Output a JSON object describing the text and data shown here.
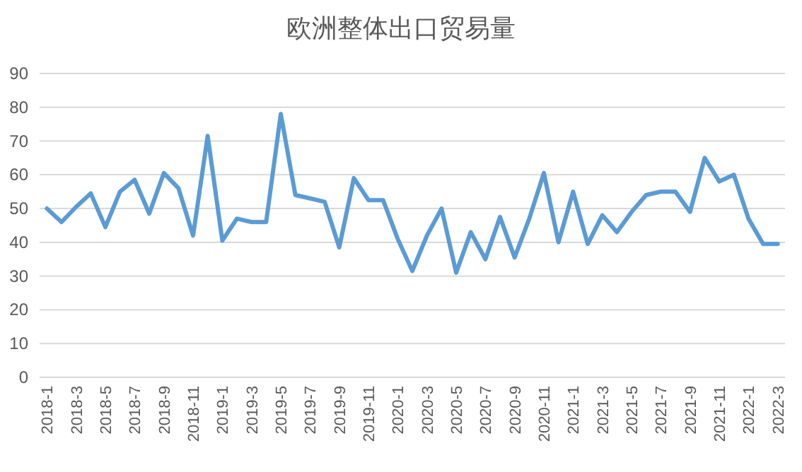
{
  "chart_data": {
    "type": "line",
    "title": "欧洲整体出口贸易量",
    "categories": [
      "2018-1",
      null,
      "2018-3",
      null,
      "2018-5",
      null,
      "2018-7",
      null,
      "2018-9",
      null,
      "2018-11",
      null,
      "2019-1",
      null,
      "2019-3",
      null,
      "2019-5",
      null,
      "2019-7",
      null,
      "2019-9",
      null,
      "2019-11",
      null,
      "2020-1",
      null,
      "2020-3",
      null,
      "2020-5",
      null,
      "2020-7",
      null,
      "2020-9",
      null,
      "2020-11",
      null,
      "2021-1",
      null,
      "2021-3",
      null,
      "2021-5",
      null,
      "2021-7",
      null,
      "2021-9",
      null,
      "2021-11",
      null,
      "2022-1",
      null,
      "2022-3"
    ],
    "series": [
      {
        "color": "#5b9bd5",
        "values": [
          50,
          46,
          50.5,
          54.5,
          44.5,
          55,
          58.5,
          48.5,
          60.5,
          56,
          42,
          71.5,
          40.5,
          47,
          46,
          46,
          78,
          54,
          53,
          52,
          38.5,
          59,
          52.5,
          52.5,
          41,
          31.5,
          42,
          50,
          31,
          43,
          35,
          47.5,
          35.5,
          47,
          60.5,
          40,
          55,
          39.5,
          48,
          43,
          49,
          54,
          55,
          55,
          49,
          65,
          58,
          60,
          47,
          39.5,
          39.5
        ]
      }
    ],
    "ylim": [
      0,
      90
    ],
    "yticks": [
      0,
      10,
      20,
      30,
      40,
      50,
      60,
      70,
      80,
      90
    ],
    "grid": "y"
  }
}
